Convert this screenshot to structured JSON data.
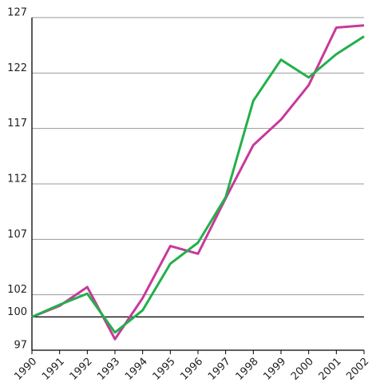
{
  "chart_data": {
    "type": "line",
    "categories": [
      "1990",
      "1991",
      "1992",
      "1993",
      "1994",
      "1995",
      "1996",
      "1997",
      "1998",
      "1999",
      "2000",
      "2001",
      "2002"
    ],
    "series": [
      {
        "color": "#c8399a",
        "values": [
          100,
          101,
          102.7,
          98,
          101.7,
          106.4,
          105.7,
          110.7,
          115.5,
          117.8,
          120.9,
          126.1,
          126.3
        ]
      },
      {
        "color": "#22b04b",
        "values": [
          100,
          101.1,
          102.1,
          98.6,
          100.6,
          104.8,
          106.7,
          110.8,
          119.5,
          123.2,
          121.6,
          123.7,
          125.3
        ]
      }
    ],
    "ylim": [
      97,
      127
    ],
    "yticks": [
      97,
      100,
      102,
      107,
      112,
      117,
      122,
      127
    ],
    "grid": true,
    "baseline": 100
  }
}
